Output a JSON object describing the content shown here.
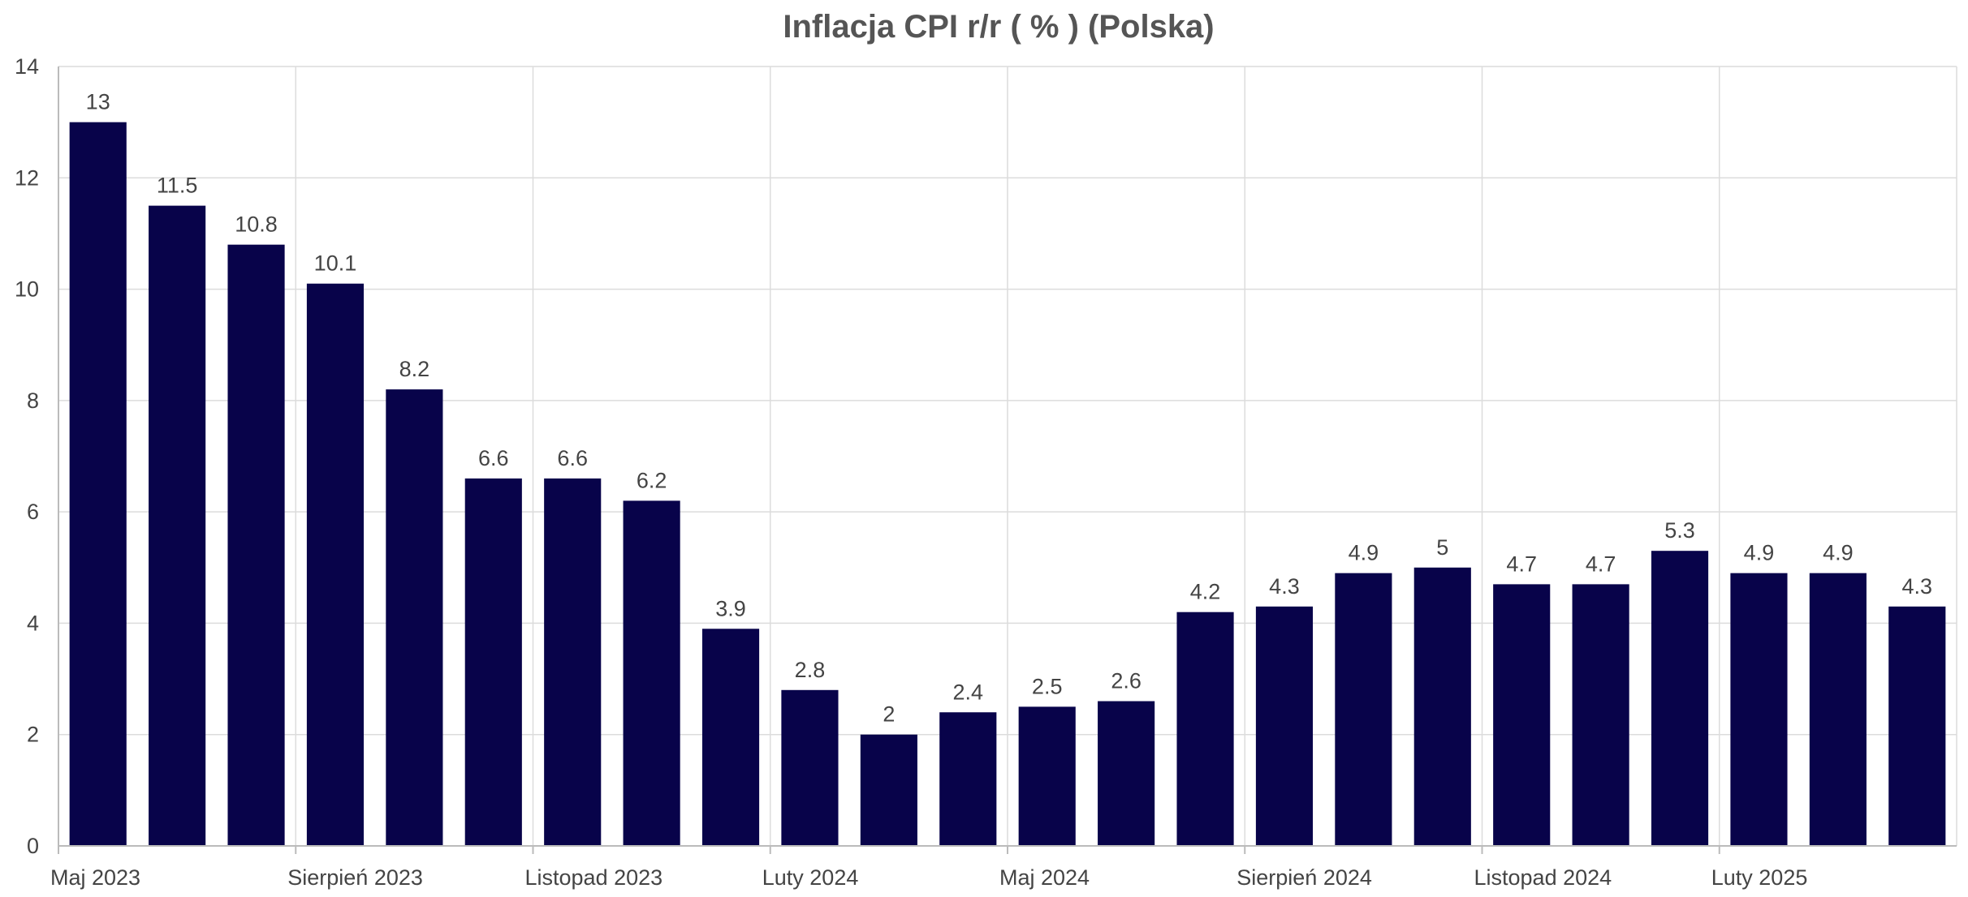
{
  "chart_data": {
    "type": "bar",
    "title": "Inflacja CPI r/r ( % ) (Polska)",
    "xlabel": "",
    "ylabel": "",
    "ylim": [
      0,
      14
    ],
    "yticks": [
      "0",
      "2",
      "4",
      "6",
      "8",
      "10",
      "12",
      "14"
    ],
    "grid": true,
    "legend": "none",
    "bar_color": "#08034a",
    "values": [
      13,
      11.5,
      10.8,
      10.1,
      8.2,
      6.6,
      6.6,
      6.2,
      3.9,
      2.8,
      2,
      2.4,
      2.5,
      2.6,
      4.2,
      4.3,
      4.9,
      5,
      4.7,
      4.7,
      5.3,
      4.9,
      4.9,
      4.3
    ],
    "value_labels": [
      "13",
      "11.5",
      "10.8",
      "10.1",
      "8.2",
      "6.6",
      "6.6",
      "6.2",
      "3.9",
      "2.8",
      "2",
      "2.4",
      "2.5",
      "2.6",
      "4.2",
      "4.3",
      "4.9",
      "5",
      "4.7",
      "4.7",
      "5.3",
      "4.9",
      "4.9",
      "4.3"
    ],
    "x_tick_labels": [
      {
        "index": 0,
        "label": "Maj 2023"
      },
      {
        "index": 3,
        "label": "Sierpień 2023"
      },
      {
        "index": 6,
        "label": "Listopad 2023"
      },
      {
        "index": 9,
        "label": "Luty 2024"
      },
      {
        "index": 12,
        "label": "Maj 2024"
      },
      {
        "index": 15,
        "label": "Sierpień 2024"
      },
      {
        "index": 18,
        "label": "Listopad 2024"
      },
      {
        "index": 21,
        "label": "Luty 2025"
      }
    ]
  }
}
